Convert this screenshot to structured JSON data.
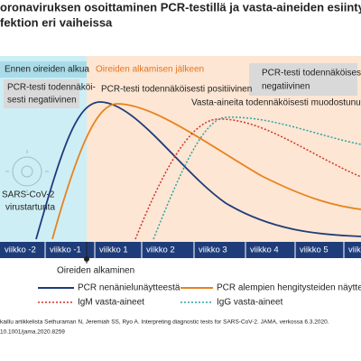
{
  "header": {
    "title_line1": "oronaviruksen osoittaminen PCR-testillä ja vasta-aineiden esiintyminen",
    "title_line2": "fektion eri vaiheissa"
  },
  "phases": {
    "before": "Ennen oireiden alkua",
    "after": "Oireiden alkamisen jälkeen"
  },
  "annotations": {
    "neg_before_1": "PCR-testi todennäköi-",
    "neg_before_2": "sesti negatiivinen",
    "neg_after_1": "PCR-testi todennäköisesti",
    "neg_after_2": "negatiivinen",
    "positive": "PCR-testi todennäköisesti positiivinen",
    "antibodies": "Vasta-aineita todennäköisesti muodostunut",
    "infection_1": "SARS-CoV-2",
    "infection_2": "virustartunta",
    "onset": "Oireiden alkaminen"
  },
  "weeks": [
    "viikko -2",
    "viikko -1",
    "viikko 1",
    "viikko 2",
    "viikko 3",
    "viikko 4",
    "viikko 5",
    "viikko 6"
  ],
  "legend": [
    "PCR nenänielunäytteestä",
    "PCR alempien hengitysteiden näytteestä",
    "IgM vasta-aineet",
    "IgG vasta-aineet"
  ],
  "source": {
    "line1": "kaillu artikkelista Sethuraman N, Jeremiah SS, Ryo A. Interpreting diagnostic tests for SARS-CoV-2. JAMA, verkossa 6.3.2020.",
    "line2": "10.1001/jama.2020.8259"
  }
}
